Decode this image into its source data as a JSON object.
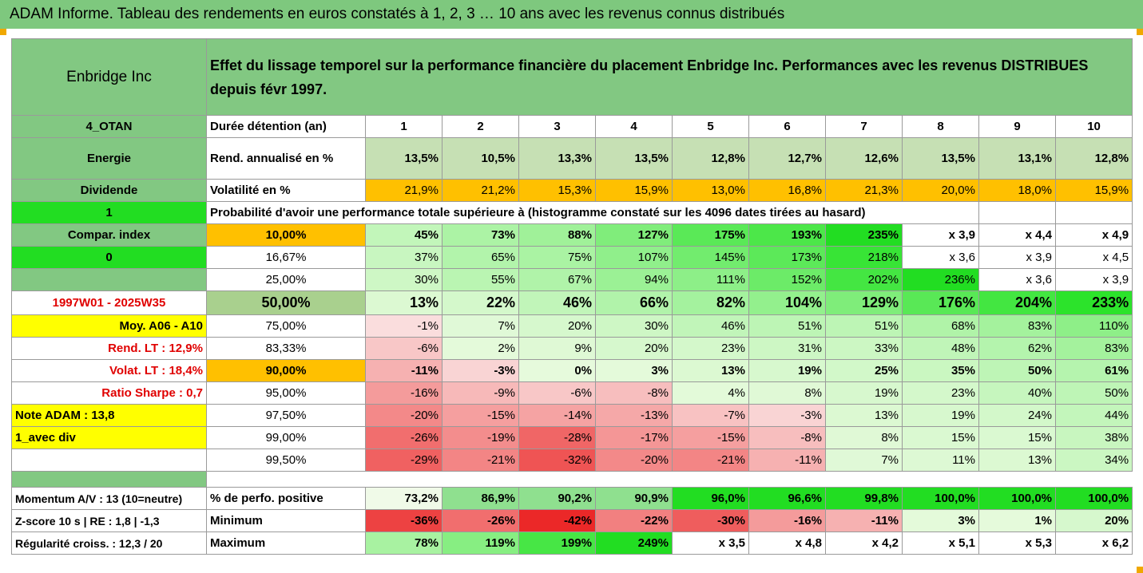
{
  "title": "ADAM Informe. Tableau des rendements en euros constatés à 1, 2, 3 … 10 ans avec les revenus connus distribués",
  "header": {
    "name": "Enbridge Inc",
    "description": "Effet du lissage temporel sur la performance financière du placement Enbridge Inc. Performances avec les revenus DISTRIBUES depuis févr 1997."
  },
  "rows": {
    "duree": {
      "left": "4_OTAN",
      "label": "Durée détention (an)",
      "values": [
        "1",
        "2",
        "3",
        "4",
        "5",
        "6",
        "7",
        "8",
        "9",
        "10"
      ]
    },
    "rend": {
      "left": "Energie",
      "label": "Rend. annualisé en %",
      "values": [
        "13,5%",
        "10,5%",
        "13,3%",
        "13,5%",
        "12,8%",
        "12,7%",
        "12,6%",
        "13,5%",
        "13,1%",
        "12,8%"
      ]
    },
    "vol": {
      "left": "Dividende",
      "label": "Volatilité en %",
      "values": [
        "21,9%",
        "21,2%",
        "15,3%",
        "15,9%",
        "13,0%",
        "16,8%",
        "21,3%",
        "20,0%",
        "18,0%",
        "15,9%"
      ]
    },
    "prob": {
      "left": "1",
      "label": "Probabilité d'avoir une performance totale supérieure à (histogramme constaté sur les 4096 dates tirées au hasard)"
    }
  },
  "left_labels": [
    "Compar. index",
    "0",
    "",
    "1997W01 - 2025W35",
    "Moy. A06 - A10",
    "Rend. LT :   12,9%",
    "Volat. LT :   18,4%",
    "Ratio Sharpe :    0,7",
    "Note ADAM : 13,8",
    "1_avec div",
    ""
  ],
  "percentile_rows": [
    {
      "pct": "10,00%",
      "values": [
        "45%",
        "73%",
        "88%",
        "127%",
        "175%",
        "193%",
        "235%",
        "x 3,9",
        "x 4,4",
        "x 4,9"
      ]
    },
    {
      "pct": "16,67%",
      "values": [
        "37%",
        "65%",
        "75%",
        "107%",
        "145%",
        "173%",
        "218%",
        "x 3,6",
        "x 3,9",
        "x 4,5"
      ]
    },
    {
      "pct": "25,00%",
      "values": [
        "30%",
        "55%",
        "67%",
        "94%",
        "111%",
        "152%",
        "202%",
        "236%",
        "x 3,6",
        "x 3,9"
      ]
    },
    {
      "pct": "50,00%",
      "values": [
        "13%",
        "22%",
        "46%",
        "66%",
        "82%",
        "104%",
        "129%",
        "176%",
        "204%",
        "233%"
      ]
    },
    {
      "pct": "75,00%",
      "values": [
        "-1%",
        "7%",
        "20%",
        "30%",
        "46%",
        "51%",
        "51%",
        "68%",
        "83%",
        "110%"
      ]
    },
    {
      "pct": "83,33%",
      "values": [
        "-6%",
        "2%",
        "9%",
        "20%",
        "23%",
        "31%",
        "33%",
        "48%",
        "62%",
        "83%"
      ]
    },
    {
      "pct": "90,00%",
      "values": [
        "-11%",
        "-3%",
        "0%",
        "3%",
        "13%",
        "19%",
        "25%",
        "35%",
        "50%",
        "61%"
      ]
    },
    {
      "pct": "95,00%",
      "values": [
        "-16%",
        "-9%",
        "-6%",
        "-8%",
        "4%",
        "8%",
        "19%",
        "23%",
        "40%",
        "50%"
      ]
    },
    {
      "pct": "97,50%",
      "values": [
        "-20%",
        "-15%",
        "-14%",
        "-13%",
        "-7%",
        "-3%",
        "13%",
        "19%",
        "24%",
        "44%"
      ]
    },
    {
      "pct": "99,00%",
      "values": [
        "-26%",
        "-19%",
        "-28%",
        "-17%",
        "-15%",
        "-8%",
        "8%",
        "15%",
        "15%",
        "38%"
      ]
    },
    {
      "pct": "99,50%",
      "values": [
        "-29%",
        "-21%",
        "-32%",
        "-20%",
        "-21%",
        "-11%",
        "7%",
        "11%",
        "13%",
        "34%"
      ]
    }
  ],
  "bottom_rows": [
    {
      "left": "Momentum A/V : 13 (10=neutre)",
      "label": "% de perfo. positive",
      "values": [
        "73,2%",
        "86,9%",
        "90,2%",
        "90,9%",
        "96,0%",
        "96,6%",
        "99,8%",
        "100,0%",
        "100,0%",
        "100,0%"
      ]
    },
    {
      "left": "Z-score 10 s  |  RE : 1,8  |  -1,3",
      "label": "Minimum",
      "values": [
        "-36%",
        "-26%",
        "-42%",
        "-22%",
        "-30%",
        "-16%",
        "-11%",
        "3%",
        "1%",
        "20%"
      ]
    },
    {
      "left": "Régularité croiss. : 12,3 / 20",
      "label": "Maximum",
      "values": [
        "78%",
        "119%",
        "199%",
        "249%",
        "x 3,5",
        "x 4,8",
        "x 4,2",
        "x 5,1",
        "x 5,3",
        "x 6,2"
      ]
    }
  ],
  "colors": {
    "header_green": "#82c882",
    "title_green": "#7ec87e",
    "bright_green": "#22dd22",
    "yellow": "#ffff00",
    "orange": "#ffc000",
    "red_text": "#e00000"
  }
}
